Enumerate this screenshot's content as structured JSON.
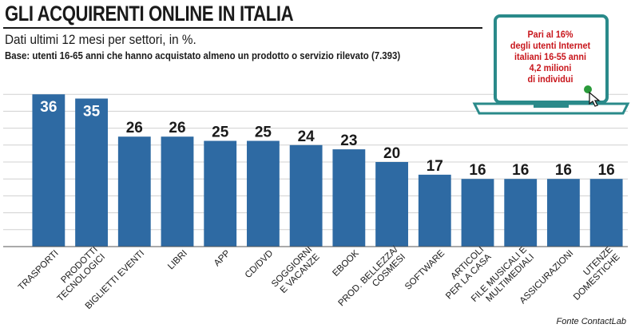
{
  "header": {
    "title": "GLI ACQUIRENTI ONLINE IN ITALIA",
    "subtitle": "Dati ultimi 12 mesi per settori, in %.",
    "base": "Base: utenti 16-65 anni che hanno acquistato almeno un prodotto o servizio rilevato (7.393)"
  },
  "callout": {
    "lines": [
      "Pari al 16%",
      "degli utenti Internet",
      "italiani 16-55 anni",
      "4,2 milioni",
      "di individui"
    ]
  },
  "source": "Fonte ContactLab",
  "colors": {
    "bar": "#2e6aa3",
    "grid": "#d0d0d0",
    "callout_text": "#c8151b",
    "laptop": "#2a8a8a"
  },
  "chart_data": {
    "type": "bar",
    "categories": [
      [
        "TRASPORTI"
      ],
      [
        "PRODOTTI",
        "TECNOLOGICI"
      ],
      [
        "BIGLIETTI EVENTI"
      ],
      [
        "LIBRI"
      ],
      [
        "APP"
      ],
      [
        "CD/DVD"
      ],
      [
        "SOGGIORNI",
        "E VACANZE"
      ],
      [
        "EBOOK"
      ],
      [
        "PROD. BELLEZZA/",
        "COSMESI"
      ],
      [
        "SOFTWARE"
      ],
      [
        "ARTICOLI",
        "PER LA CASA"
      ],
      [
        "FILE MUSICALI E",
        "MULTIMEDIALI"
      ],
      [
        "ASSICURAZIONI"
      ],
      [
        "UTENZE",
        "DOMESTICHE"
      ]
    ],
    "values": [
      36,
      35,
      26,
      26,
      25,
      25,
      24,
      23,
      20,
      17,
      16,
      16,
      16,
      16
    ],
    "ylim": [
      0,
      40
    ],
    "grid": true
  }
}
